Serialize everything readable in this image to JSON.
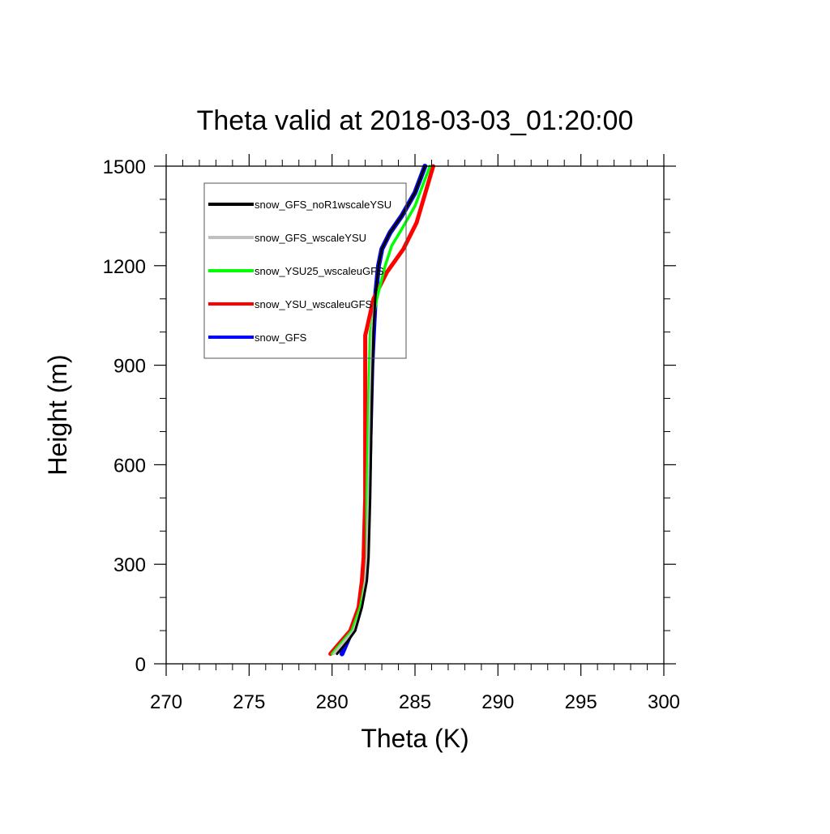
{
  "chart_data": {
    "type": "line",
    "title": "Theta valid at 2018-03-03_01:20:00",
    "xlabel": "Theta (K)",
    "ylabel": "Height (m)",
    "xlim": [
      270,
      300
    ],
    "ylim": [
      0,
      1500
    ],
    "xticks": [
      270,
      275,
      280,
      285,
      290,
      295,
      300
    ],
    "yticks": [
      0,
      300,
      600,
      900,
      1200,
      1500
    ],
    "grid": false,
    "legend_position": "top-left",
    "series": [
      {
        "name": "snow_GFS",
        "color": "#0000ff",
        "x": [
          280.6,
          281.2,
          281.7,
          282.0,
          282.1,
          282.2,
          282.3,
          282.4,
          282.5,
          282.6,
          282.8,
          283.0,
          283.5,
          284.2,
          285.0,
          285.6
        ],
        "y": [
          30,
          100,
          170,
          250,
          320,
          500,
          700,
          900,
          1000,
          1100,
          1200,
          1250,
          1300,
          1350,
          1420,
          1500
        ]
      },
      {
        "name": "snow_YSU_wscaleuGFS",
        "color": "#ff0000",
        "x": [
          279.9,
          280.5,
          281.1,
          281.6,
          281.8,
          281.9,
          282.0,
          282.0,
          282.0,
          282.1,
          282.5,
          283.3,
          284.3,
          285.1,
          286.1
        ],
        "y": [
          30,
          65,
          100,
          170,
          250,
          320,
          500,
          800,
          990,
          1010,
          1100,
          1180,
          1250,
          1330,
          1500
        ]
      },
      {
        "name": "snow_YSU25_wscaleuGFS",
        "color": "#00ff00",
        "x": [
          280.0,
          280.6,
          281.2,
          281.7,
          282.0,
          282.1,
          282.1,
          282.2,
          282.3,
          282.7,
          283.2,
          283.6,
          284.2,
          285.0,
          285.9
        ],
        "y": [
          30,
          65,
          100,
          170,
          250,
          320,
          500,
          800,
          1000,
          1100,
          1200,
          1260,
          1310,
          1380,
          1500
        ]
      },
      {
        "name": "snow_GFS_wscaleYSU",
        "color": "#c0c0c0",
        "x": [
          280.1,
          280.7,
          281.3,
          281.8,
          282.0,
          282.1,
          282.2,
          282.3,
          282.4,
          282.6,
          282.8,
          283.0,
          283.5,
          284.2,
          285.0,
          285.6
        ],
        "y": [
          30,
          65,
          100,
          170,
          250,
          320,
          500,
          800,
          1000,
          1100,
          1200,
          1250,
          1300,
          1350,
          1420,
          1500
        ]
      },
      {
        "name": "snow_GFS_noR1wscaleYSU",
        "color": "#000000",
        "x": [
          280.3,
          280.9,
          281.4,
          281.8,
          282.1,
          282.2,
          282.3,
          282.4,
          282.5,
          282.6,
          282.8,
          283.0,
          283.5,
          284.2,
          285.0,
          285.6
        ],
        "y": [
          30,
          65,
          100,
          170,
          250,
          320,
          500,
          800,
          1000,
          1100,
          1200,
          1250,
          1300,
          1350,
          1420,
          1500
        ]
      }
    ],
    "legend": [
      {
        "name": "snow_GFS_noR1wscaleYSU",
        "color": "#000000"
      },
      {
        "name": "snow_GFS_wscaleYSU",
        "color": "#c0c0c0"
      },
      {
        "name": "snow_YSU25_wscaleuGFS",
        "color": "#00ff00"
      },
      {
        "name": "snow_YSU_wscaleuGFS",
        "color": "#ff0000"
      },
      {
        "name": "snow_GFS",
        "color": "#0000ff"
      }
    ]
  }
}
